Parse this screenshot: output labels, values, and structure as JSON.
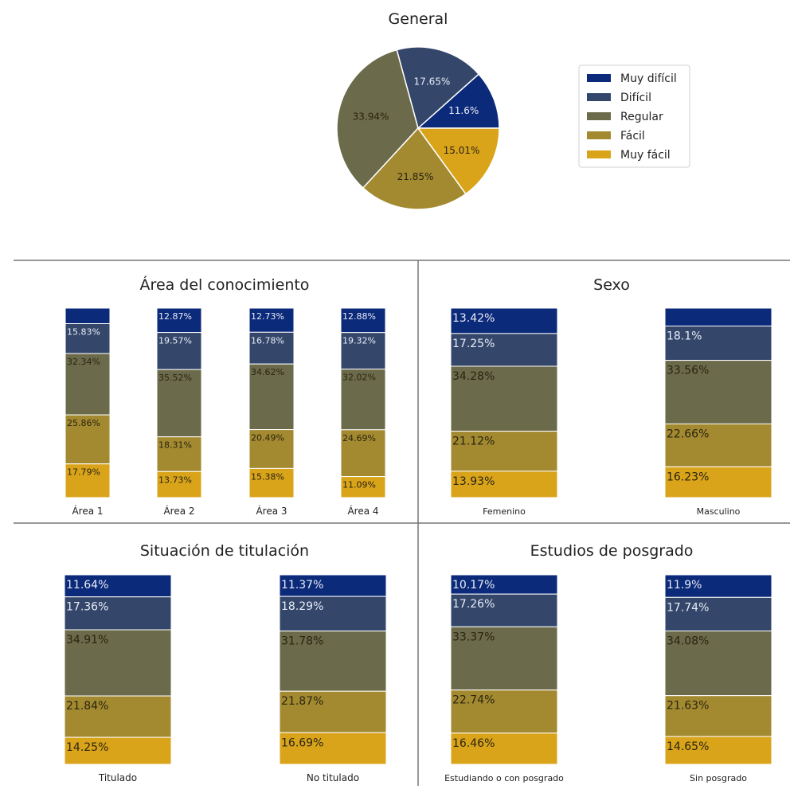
{
  "colors": {
    "muy_dificil": "#0c2a7a",
    "dificil": "#34476b",
    "regular": "#6b6a4a",
    "facil": "#a38a30",
    "muy_facil": "#d9a41a",
    "dark_text": "#2a2412",
    "light_text": "#e8ecf6"
  },
  "legend": [
    "Muy difícil",
    "Difícil",
    "Regular",
    "Fácil",
    "Muy fácil"
  ],
  "chart_data": [
    {
      "type": "pie",
      "title": "General",
      "labels": [
        "Muy difícil",
        "Difícil",
        "Regular",
        "Fácil",
        "Muy fácil"
      ],
      "values": [
        11.6,
        17.65,
        33.94,
        21.85,
        15.01
      ],
      "value_labels": [
        "11.6%",
        "17.65%",
        "33.94%",
        "21.85%",
        "15.01%"
      ],
      "legend_position": "right"
    },
    {
      "type": "bar",
      "stacked": true,
      "title": "Área del conocimiento",
      "categories": [
        "Área 1",
        "Área 2",
        "Área 3",
        "Área 4"
      ],
      "series": [
        {
          "name": "Muy difícil",
          "values": [
            8.18,
            12.87,
            12.73,
            12.88
          ],
          "labels": [
            "",
            "12.87%",
            "12.73%",
            "12.88%"
          ]
        },
        {
          "name": "Difícil",
          "values": [
            15.83,
            19.57,
            16.78,
            19.32
          ],
          "labels": [
            "15.83%",
            "19.57%",
            "16.78%",
            "19.32%"
          ]
        },
        {
          "name": "Regular",
          "values": [
            32.34,
            35.52,
            34.62,
            32.02
          ],
          "labels": [
            "32.34%",
            "35.52%",
            "34.62%",
            "32.02%"
          ]
        },
        {
          "name": "Fácil",
          "values": [
            25.86,
            18.31,
            20.49,
            24.69
          ],
          "labels": [
            "25.86%",
            "18.31%",
            "20.49%",
            "24.69%"
          ]
        },
        {
          "name": "Muy fácil",
          "values": [
            17.79,
            13.73,
            15.38,
            11.09
          ],
          "labels": [
            "17.79%",
            "13.73%",
            "15.38%",
            "11.09%"
          ]
        }
      ]
    },
    {
      "type": "bar",
      "stacked": true,
      "title": "Sexo",
      "categories": [
        "Femenino",
        "Masculino"
      ],
      "series": [
        {
          "name": "Muy difícil",
          "values": [
            13.42,
            9.45
          ],
          "labels": [
            "13.42%",
            ""
          ]
        },
        {
          "name": "Difícil",
          "values": [
            17.25,
            18.1
          ],
          "labels": [
            "17.25%",
            "18.1%"
          ]
        },
        {
          "name": "Regular",
          "values": [
            34.28,
            33.56
          ],
          "labels": [
            "34.28%",
            "33.56%"
          ]
        },
        {
          "name": "Fácil",
          "values": [
            21.12,
            22.66
          ],
          "labels": [
            "21.12%",
            "22.66%"
          ]
        },
        {
          "name": "Muy fácil",
          "values": [
            13.93,
            16.23
          ],
          "labels": [
            "13.93%",
            "16.23%"
          ]
        }
      ]
    },
    {
      "type": "bar",
      "stacked": true,
      "title": "Situación de titulación",
      "categories": [
        "Titulado",
        "No titulado"
      ],
      "series": [
        {
          "name": "Muy difícil",
          "values": [
            11.64,
            11.37
          ],
          "labels": [
            "11.64%",
            "11.37%"
          ]
        },
        {
          "name": "Difícil",
          "values": [
            17.36,
            18.29
          ],
          "labels": [
            "17.36%",
            "18.29%"
          ]
        },
        {
          "name": "Regular",
          "values": [
            34.91,
            31.78
          ],
          "labels": [
            "34.91%",
            "31.78%"
          ]
        },
        {
          "name": "Fácil",
          "values": [
            21.84,
            21.87
          ],
          "labels": [
            "21.84%",
            "21.87%"
          ]
        },
        {
          "name": "Muy fácil",
          "values": [
            14.25,
            16.69
          ],
          "labels": [
            "14.25%",
            "16.69%"
          ]
        }
      ]
    },
    {
      "type": "bar",
      "stacked": true,
      "title": "Estudios de posgrado",
      "categories": [
        "Estudiando o con posgrado",
        "Sin posgrado"
      ],
      "series": [
        {
          "name": "Muy difícil",
          "values": [
            10.17,
            11.9
          ],
          "labels": [
            "10.17%",
            "11.9%"
          ]
        },
        {
          "name": "Difícil",
          "values": [
            17.26,
            17.74
          ],
          "labels": [
            "17.26%",
            "17.74%"
          ]
        },
        {
          "name": "Regular",
          "values": [
            33.37,
            34.08
          ],
          "labels": [
            "33.37%",
            "34.08%"
          ]
        },
        {
          "name": "Fácil",
          "values": [
            22.74,
            21.63
          ],
          "labels": [
            "22.74%",
            "21.63%"
          ]
        },
        {
          "name": "Muy fácil",
          "values": [
            16.46,
            14.65
          ],
          "labels": [
            "16.46%",
            "14.65%"
          ]
        }
      ]
    }
  ]
}
